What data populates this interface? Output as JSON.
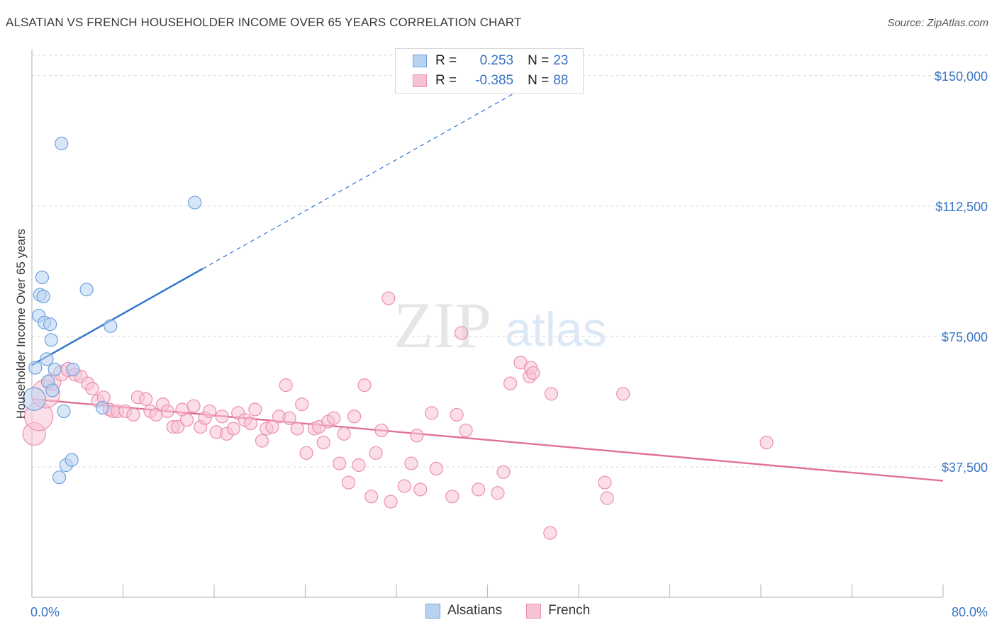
{
  "title": "ALSATIAN VS FRENCH HOUSEHOLDER INCOME OVER 65 YEARS CORRELATION CHART",
  "source": "Source: ZipAtlas.com",
  "watermark": {
    "zip": "ZIP",
    "atlas": "atlas"
  },
  "legend_top": {
    "rows": [
      {
        "r_label": "R =",
        "r_value": "0.253",
        "n_label": "N =",
        "n_value": "23"
      },
      {
        "r_label": "R =",
        "r_value": "-0.385",
        "n_label": "N =",
        "n_value": "88"
      }
    ]
  },
  "colors": {
    "alsatians_fill": "#b8d3f2",
    "alsatians_stroke": "#6fa0dd",
    "alsatians_line": "#2f72cf",
    "french_fill": "#f7c3d4",
    "french_stroke": "#eb8fae",
    "french_line": "#e0709a",
    "axis_label": "#3a74c4",
    "grid": "#d9d9d9"
  },
  "chart_data": {
    "type": "scatter",
    "title": "ALSATIAN VS FRENCH HOUSEHOLDER INCOME OVER 65 YEARS CORRELATION CHART",
    "xlabel": "",
    "ylabel": "Householder Income Over 65 years",
    "xlim": [
      0,
      80
    ],
    "ylim": [
      0,
      157500
    ],
    "x_tick_labels": [
      "0.0%",
      "80.0%"
    ],
    "y_ticks": [
      37500,
      75000,
      112500,
      150000
    ],
    "y_tick_labels": [
      "$37,500",
      "$75,000",
      "$112,500",
      "$150,000"
    ],
    "grid": true,
    "legend_position": "top-center and bottom",
    "series": [
      {
        "name": "Alsatians",
        "r": 0.253,
        "n": 23,
        "points": [
          [
            0.2,
            57000,
            16
          ],
          [
            0.3,
            66000,
            9
          ],
          [
            0.6,
            81000,
            9
          ],
          [
            0.7,
            87000,
            9
          ],
          [
            0.9,
            92000,
            9
          ],
          [
            1.0,
            86500,
            9
          ],
          [
            1.1,
            79000,
            9
          ],
          [
            1.3,
            68500,
            9
          ],
          [
            1.4,
            62000,
            9
          ],
          [
            1.6,
            78500,
            9
          ],
          [
            1.7,
            74000,
            9
          ],
          [
            1.8,
            59500,
            9
          ],
          [
            2.0,
            65500,
            9
          ],
          [
            2.4,
            34500,
            9
          ],
          [
            2.6,
            130500,
            9
          ],
          [
            2.8,
            53500,
            9
          ],
          [
            3.0,
            38000,
            9
          ],
          [
            3.5,
            39500,
            9
          ],
          [
            3.6,
            65500,
            9
          ],
          [
            4.8,
            88500,
            9
          ],
          [
            6.2,
            54500,
            9
          ],
          [
            6.9,
            78000,
            9
          ],
          [
            14.3,
            113500,
            9
          ]
        ],
        "trend": {
          "x": [
            0,
            15
          ],
          "y": [
            66800,
            94500
          ]
        },
        "trend_dashed": {
          "x": [
            15,
            44
          ],
          "y": [
            94500,
            148000
          ]
        }
      },
      {
        "name": "French",
        "r": -0.385,
        "n": 88,
        "points": [
          [
            0.2,
            47000,
            16
          ],
          [
            0.6,
            52000,
            20
          ],
          [
            1.2,
            58500,
            20
          ],
          [
            1.8,
            62000,
            12
          ],
          [
            2.6,
            64500,
            11
          ],
          [
            3.2,
            65500,
            10
          ],
          [
            3.8,
            64000,
            9
          ],
          [
            4.3,
            63500,
            9
          ],
          [
            4.9,
            61500,
            9
          ],
          [
            5.3,
            60000,
            9
          ],
          [
            5.8,
            56500,
            9
          ],
          [
            6.3,
            57500,
            9
          ],
          [
            6.8,
            54000,
            9
          ],
          [
            7.1,
            53500,
            9
          ],
          [
            7.5,
            53500,
            9
          ],
          [
            8.2,
            53500,
            9
          ],
          [
            8.9,
            52500,
            9
          ],
          [
            9.3,
            57500,
            9
          ],
          [
            10.0,
            57000,
            9
          ],
          [
            10.4,
            53500,
            9
          ],
          [
            10.9,
            52500,
            9
          ],
          [
            11.5,
            55500,
            9
          ],
          [
            11.9,
            53500,
            9
          ],
          [
            12.4,
            49000,
            9
          ],
          [
            12.8,
            49000,
            9
          ],
          [
            13.2,
            54000,
            9
          ],
          [
            13.6,
            51000,
            9
          ],
          [
            14.2,
            55000,
            9
          ],
          [
            14.8,
            49000,
            9
          ],
          [
            15.2,
            51500,
            9
          ],
          [
            15.6,
            53500,
            9
          ],
          [
            16.2,
            47500,
            9
          ],
          [
            16.7,
            52000,
            9
          ],
          [
            17.1,
            47000,
            9
          ],
          [
            17.7,
            48500,
            9
          ],
          [
            18.1,
            53000,
            9
          ],
          [
            18.7,
            51000,
            9
          ],
          [
            19.2,
            50000,
            9
          ],
          [
            19.6,
            54000,
            9
          ],
          [
            20.2,
            45000,
            9
          ],
          [
            20.6,
            48500,
            9
          ],
          [
            21.1,
            49000,
            9
          ],
          [
            21.7,
            52000,
            9
          ],
          [
            22.3,
            61000,
            9
          ],
          [
            22.6,
            51500,
            9
          ],
          [
            23.3,
            48500,
            9
          ],
          [
            23.7,
            55500,
            9
          ],
          [
            24.1,
            41500,
            9
          ],
          [
            24.8,
            48500,
            9
          ],
          [
            25.2,
            49000,
            9
          ],
          [
            25.6,
            44500,
            9
          ],
          [
            26.0,
            50500,
            9
          ],
          [
            26.5,
            51500,
            9
          ],
          [
            27.0,
            38500,
            9
          ],
          [
            27.4,
            47000,
            9
          ],
          [
            27.8,
            33000,
            9
          ],
          [
            28.3,
            52000,
            9
          ],
          [
            28.7,
            38000,
            9
          ],
          [
            29.2,
            61000,
            9
          ],
          [
            29.8,
            29000,
            9
          ],
          [
            30.2,
            41500,
            9
          ],
          [
            30.7,
            48000,
            9
          ],
          [
            31.3,
            86000,
            9
          ],
          [
            31.5,
            27500,
            9
          ],
          [
            32.7,
            32000,
            9
          ],
          [
            33.3,
            38500,
            9
          ],
          [
            33.8,
            46500,
            9
          ],
          [
            34.1,
            31000,
            9
          ],
          [
            35.1,
            53000,
            9
          ],
          [
            35.5,
            37000,
            9
          ],
          [
            36.9,
            29000,
            9
          ],
          [
            37.3,
            52500,
            9
          ],
          [
            37.7,
            76000,
            9
          ],
          [
            38.1,
            48000,
            9
          ],
          [
            39.2,
            31000,
            9
          ],
          [
            40.9,
            30000,
            9
          ],
          [
            41.4,
            36000,
            9
          ],
          [
            42.0,
            61500,
            9
          ],
          [
            42.9,
            67500,
            9
          ],
          [
            43.7,
            63500,
            9
          ],
          [
            43.8,
            66000,
            9
          ],
          [
            45.6,
            58500,
            9
          ],
          [
            45.5,
            18500,
            9
          ],
          [
            50.3,
            33000,
            9
          ],
          [
            50.5,
            28500,
            9
          ],
          [
            51.9,
            58500,
            9
          ],
          [
            64.5,
            44500,
            9
          ],
          [
            44.0,
            64500,
            9
          ]
        ],
        "trend": {
          "x": [
            0,
            80
          ],
          "y": [
            57000,
            33500
          ]
        }
      }
    ]
  },
  "bottom_legend": [
    {
      "label": "Alsatians"
    },
    {
      "label": "French"
    }
  ]
}
